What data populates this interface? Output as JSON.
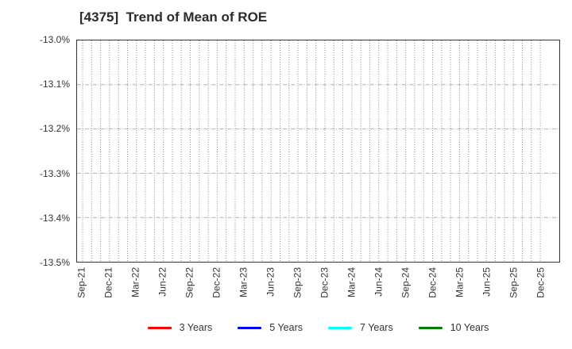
{
  "chart_data": {
    "type": "line",
    "title": "[4375]  Trend of Mean of ROE",
    "xlabel": "",
    "ylabel": "",
    "x_tick_labels": [
      "Sep-21",
      "Dec-21",
      "Mar-22",
      "Jun-22",
      "Sep-22",
      "Dec-22",
      "Mar-23",
      "Jun-23",
      "Sep-23",
      "Dec-23",
      "Mar-24",
      "Jun-24",
      "Sep-24",
      "Dec-24",
      "Mar-25",
      "Jun-25",
      "Sep-25",
      "Dec-25"
    ],
    "y_tick_labels": [
      "-13.0%",
      "-13.1%",
      "-13.2%",
      "-13.3%",
      "-13.4%",
      "-13.5%"
    ],
    "ylim": [
      -13.5,
      -13.0
    ],
    "y_unit": "%",
    "grid": true,
    "minor_vertical_gridlines": "monthly",
    "legend_position": "bottom",
    "plot_is_empty": true,
    "series": [
      {
        "name": "3 Years",
        "color": "#ff0000",
        "values": []
      },
      {
        "name": "5 Years",
        "color": "#0000ff",
        "values": []
      },
      {
        "name": "7 Years",
        "color": "#00ffff",
        "values": []
      },
      {
        "name": "10 Years",
        "color": "#008000",
        "values": []
      }
    ]
  }
}
